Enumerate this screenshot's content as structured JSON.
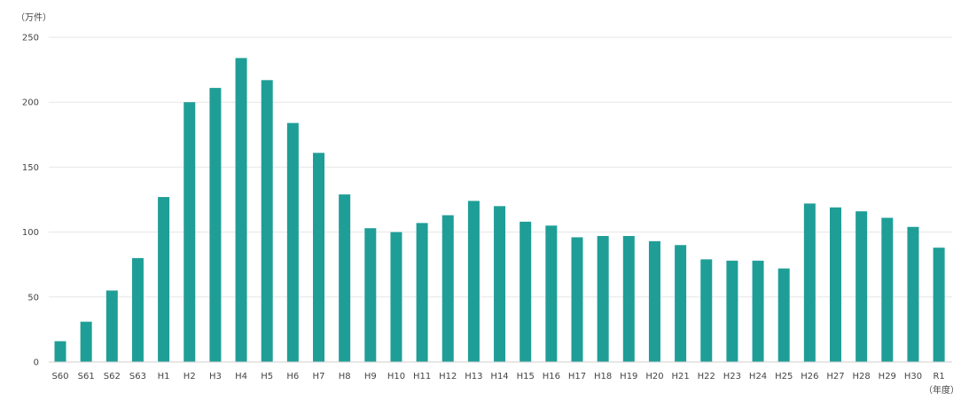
{
  "chart_data": {
    "type": "bar",
    "title": "",
    "y_unit_label": "（万件）",
    "x_unit_label": "（年度）",
    "ylim": [
      0,
      250
    ],
    "yticks": [
      0,
      50,
      100,
      150,
      200,
      250
    ],
    "grid": true,
    "bar_color": "#1f9e97",
    "categories": [
      "S60",
      "S61",
      "S62",
      "S63",
      "H1",
      "H2",
      "H3",
      "H4",
      "H5",
      "H6",
      "H7",
      "H8",
      "H9",
      "H10",
      "H11",
      "H12",
      "H13",
      "H14",
      "H15",
      "H16",
      "H17",
      "H18",
      "H19",
      "H20",
      "H21",
      "H22",
      "H23",
      "H24",
      "H25",
      "H26",
      "H27",
      "H28",
      "H29",
      "H30",
      "R1"
    ],
    "values": [
      16,
      31,
      55,
      80,
      127,
      200,
      211,
      234,
      217,
      184,
      161,
      129,
      103,
      100,
      107,
      113,
      124,
      120,
      108,
      105,
      96,
      97,
      97,
      93,
      90,
      79,
      78,
      78,
      72,
      122,
      119,
      116,
      111,
      104,
      88
    ]
  }
}
